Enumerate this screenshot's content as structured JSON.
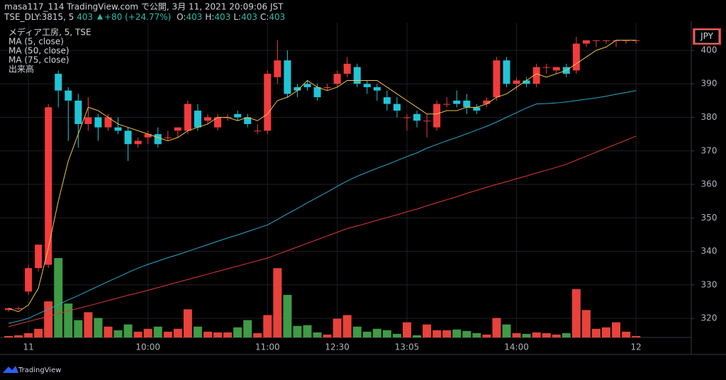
{
  "header": {
    "line1": "masa117_114 TradingView.com で公開, 3月 11, 2021 20:09:06 JST",
    "symbol": "TSE_DLY:3815, 5",
    "last": 403,
    "change": "+80 (+24.77%)",
    "ohlc": [
      {
        "label": "O:",
        "value": 403
      },
      {
        "label": "H:",
        "value": 403
      },
      {
        "label": "L:",
        "value": 403
      },
      {
        "label": "C:",
        "value": 403
      }
    ]
  },
  "chart_data": {
    "type": "candlestick",
    "legend_title": "メディア工房, 5, TSE",
    "volume_name": "出来高",
    "currency": "JPY",
    "categories": [
      null,
      null,
      "11",
      null,
      null,
      null,
      null,
      null,
      null,
      null,
      null,
      null,
      null,
      null,
      "10:00",
      null,
      null,
      null,
      null,
      null,
      null,
      null,
      null,
      null,
      null,
      null,
      "11:00",
      null,
      null,
      null,
      null,
      null,
      null,
      "12:30",
      null,
      null,
      null,
      null,
      null,
      null,
      "13:05",
      null,
      null,
      null,
      null,
      null,
      null,
      null,
      null,
      null,
      null,
      "14:00",
      null,
      null,
      null,
      null,
      null,
      null,
      null,
      null,
      null,
      null,
      null,
      "12"
    ],
    "open": [
      322.5,
      323,
      328,
      335,
      336,
      393,
      388,
      385,
      378,
      380,
      377,
      377,
      376,
      372,
      374,
      375,
      374,
      376,
      376,
      382,
      379,
      377,
      380,
      381,
      380,
      376,
      376,
      392,
      397,
      389,
      390,
      389,
      389,
      390,
      393,
      395,
      390,
      389,
      386,
      384,
      380,
      381,
      379,
      377,
      384,
      385,
      385,
      383,
      384,
      386,
      397,
      390,
      391,
      390,
      395,
      394,
      395,
      394,
      402,
      403,
      403,
      403,
      403,
      403
    ],
    "high": [
      323,
      323.5,
      336,
      342,
      384,
      394,
      389,
      387,
      386,
      381,
      381,
      380,
      377,
      374,
      376,
      377,
      376,
      377,
      385,
      384,
      381,
      381,
      381,
      382,
      381,
      378,
      394,
      403,
      400,
      390,
      391,
      390,
      390,
      394,
      398,
      396,
      391,
      390,
      388,
      386,
      381,
      382,
      381,
      385,
      386,
      388,
      387,
      384,
      386,
      398,
      398,
      392,
      392,
      396,
      396,
      395,
      396,
      404,
      403,
      403,
      403,
      403,
      403,
      403
    ],
    "low": [
      322,
      322.5,
      327,
      334,
      335,
      383,
      373,
      371,
      376,
      373,
      376,
      375,
      367,
      371,
      372,
      371,
      373,
      374,
      375,
      376,
      378,
      376,
      379,
      379,
      377,
      375,
      375,
      390,
      386,
      386,
      388,
      385,
      388,
      389,
      392,
      389,
      387,
      385,
      382,
      380,
      376,
      377,
      374,
      376,
      383,
      383,
      381,
      381,
      383,
      385,
      389,
      388,
      389,
      389,
      393,
      393,
      392,
      393,
      401,
      401,
      402,
      401,
      402,
      402
    ],
    "close": [
      323,
      323,
      335,
      342,
      383,
      388,
      385,
      378,
      380,
      377,
      380,
      376,
      372,
      373,
      375,
      372,
      374,
      377,
      384,
      377,
      380,
      380,
      380,
      380,
      378,
      376,
      393,
      397,
      387,
      388,
      389,
      386,
      389,
      393,
      396,
      390,
      389,
      388,
      384,
      382,
      380,
      379,
      379,
      384,
      384,
      384,
      383,
      382,
      385,
      397,
      390,
      391,
      390,
      395,
      395,
      395,
      393,
      402,
      403,
      403,
      403,
      403,
      403,
      403
    ],
    "volume": [
      2,
      3,
      6,
      12,
      50,
      110,
      47,
      24,
      35,
      27,
      15,
      10,
      18,
      8,
      12,
      15,
      8,
      12,
      39,
      15,
      8,
      7,
      7,
      14,
      24,
      6,
      31,
      96,
      59,
      16,
      17,
      7,
      4,
      26,
      31,
      15,
      8,
      12,
      10,
      5,
      21,
      3,
      18,
      10,
      10,
      11,
      9,
      6,
      4,
      27,
      18,
      6,
      5,
      7,
      6,
      4,
      6,
      67,
      38,
      12,
      14,
      21,
      8,
      2
    ],
    "up_color": "#f23c3c",
    "down_color": "#22c3d6",
    "volume_up_color": "#e8423a",
    "volume_down_color": "#3f9b45",
    "series": [
      {
        "name": "MA (5, close)",
        "color": "#f2c44a",
        "values": [
          323,
          322,
          324,
          329,
          341,
          355,
          367,
          375,
          383,
          382,
          380,
          378,
          377,
          376,
          375,
          374,
          373,
          374,
          376,
          377,
          378,
          380,
          380,
          379,
          380,
          379,
          381,
          385,
          386,
          388,
          391,
          389,
          388,
          389,
          391,
          391,
          391,
          391,
          389,
          387,
          385,
          383,
          381,
          381,
          382,
          382,
          383,
          383,
          384,
          386,
          387,
          389,
          391,
          393,
          392,
          393,
          394,
          396,
          398,
          400,
          401,
          403,
          403,
          403
        ]
      },
      {
        "name": "MA (50, close)",
        "color": "#2aa8cc",
        "values": [
          318.5,
          319.2,
          320,
          321.4,
          322.7,
          324.1,
          325.5,
          326.8,
          328.2,
          329.6,
          331,
          332.3,
          333.7,
          335,
          336.1,
          337.1,
          338.1,
          339,
          340,
          341,
          342,
          343,
          344,
          344.9,
          345.9,
          346.9,
          347.9,
          349.5,
          351.2,
          352.8,
          354.5,
          356.1,
          357.7,
          359.4,
          361,
          362.4,
          363.6,
          364.8,
          365.9,
          367.1,
          368.3,
          369.4,
          370.8,
          371.9,
          373,
          374,
          375.1,
          376.2,
          377.3,
          378.6,
          380,
          381.4,
          382.8,
          384,
          384.1,
          384.3,
          384.6,
          385,
          385.4,
          385.8,
          386.3,
          386.9,
          387.4,
          388
        ]
      },
      {
        "name": "MA (75, close)",
        "color": "#e0392f",
        "values": [
          317.5,
          318.3,
          319.1,
          319.8,
          320.6,
          321.4,
          322.2,
          323,
          323.7,
          324.5,
          325.3,
          326.1,
          326.9,
          327.6,
          328.4,
          329.2,
          330,
          330.8,
          331.6,
          332.4,
          333.2,
          334,
          334.8,
          335.6,
          336.4,
          337.2,
          338,
          339.1,
          340.2,
          341.3,
          342.4,
          343.5,
          344.6,
          345.7,
          346.8,
          347.6,
          348.4,
          349.3,
          350.1,
          350.9,
          351.8,
          352.6,
          353.6,
          354.5,
          355.4,
          356.3,
          357.3,
          358.2,
          359.1,
          360,
          360.8,
          361.7,
          362.5,
          363.4,
          364.2,
          365.1,
          366,
          367.2,
          368.4,
          369.6,
          370.8,
          372,
          373.2,
          374.4
        ]
      }
    ],
    "ylim": [
      314.3,
      408.25
    ],
    "yticks": [
      320,
      330,
      340,
      350,
      360,
      370,
      380,
      390,
      400
    ],
    "grid": true
  },
  "footer": {
    "brand": "TradingView"
  }
}
